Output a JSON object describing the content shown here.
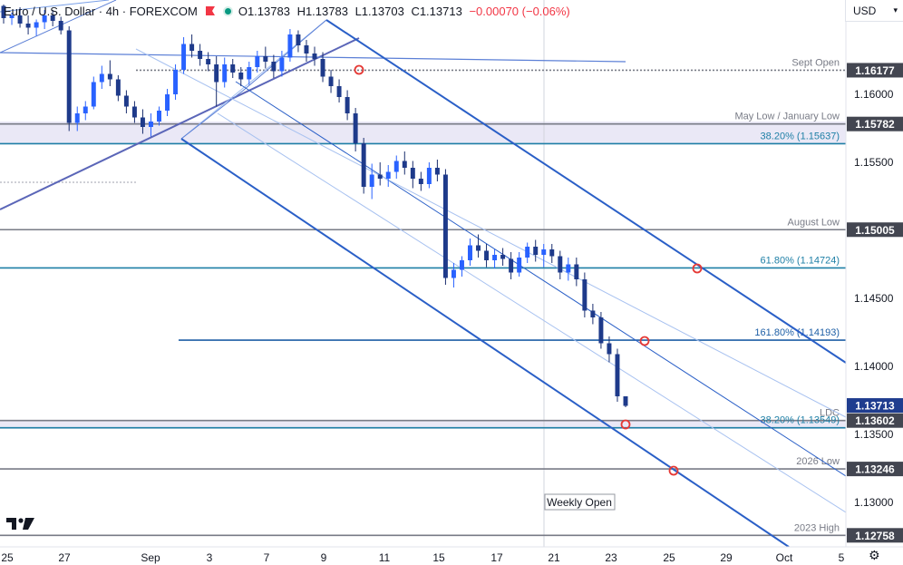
{
  "header": {
    "symbol": "Euro / U.S. Dollar · 4h · FOREXCOM",
    "open": "O1.13783",
    "high": "H1.13783",
    "low": "L1.13703",
    "close": "C1.13713",
    "change": "−0.00070 (−0.06%)"
  },
  "currency": "USD",
  "chart_data": {
    "type": "candlestick",
    "symbol": "EURUSD",
    "timeframe": "4h",
    "ylim": [
      1.1265,
      1.1665
    ],
    "y_ticks": [
      1.16,
      1.155,
      1.145,
      1.14,
      1.135,
      1.13
    ],
    "y_tick_labels": [
      "1.16000",
      "1.15500",
      "1.14500",
      "1.14000",
      "1.13500",
      "1.13000"
    ],
    "x_tick_labels": [
      "25",
      "27",
      "Sep",
      "3",
      "5",
      "7",
      "9",
      "11",
      "15",
      "17",
      "21",
      "23",
      "25",
      "29",
      "Oct",
      "5"
    ],
    "last_price": 1.13713,
    "last_price_label": "1.13713",
    "levels": [
      {
        "label": "Sept Open",
        "price": 1.16177,
        "price_label": "1.16177"
      },
      {
        "label": "May Low / January Low",
        "price": 1.15782,
        "price_label": "1.15782"
      },
      {
        "label": "38.20% (1.15637)",
        "price": 1.15637,
        "price_label": ""
      },
      {
        "label": "August Low",
        "price": 1.15005,
        "price_label": "1.15005"
      },
      {
        "label": "61.80% (1.14724)",
        "price": 1.14724,
        "price_label": ""
      },
      {
        "label": "161.80% (1.14193)",
        "price": 1.14193,
        "price_label": ""
      },
      {
        "label": "LDC",
        "price": 1.13602,
        "price_label": "1.13602"
      },
      {
        "label": "38.20% (1.13549)",
        "price": 1.13549,
        "price_label": ""
      },
      {
        "label": "2026 Low",
        "price": 1.13246,
        "price_label": "1.13246"
      },
      {
        "label": "2023 High",
        "price": 1.12758,
        "price_label": "1.12758"
      }
    ],
    "annotations": [
      "Weekly Open"
    ],
    "candles_ohlc": [
      [
        1.1665,
        1.1666,
        1.1652,
        1.1656
      ],
      [
        1.1656,
        1.166,
        1.1651,
        1.1658
      ],
      [
        1.1658,
        1.1664,
        1.1649,
        1.1652
      ],
      [
        1.1652,
        1.1658,
        1.1644,
        1.1649
      ],
      [
        1.1649,
        1.1655,
        1.1643,
        1.1653
      ],
      [
        1.1653,
        1.1662,
        1.1648,
        1.1658
      ],
      [
        1.1658,
        1.1662,
        1.165,
        1.1654
      ],
      [
        1.1654,
        1.1657,
        1.1644,
        1.1647
      ],
      [
        1.1647,
        1.165,
        1.1573,
        1.1579
      ],
      [
        1.1579,
        1.1591,
        1.1573,
        1.1586
      ],
      [
        1.1586,
        1.1595,
        1.1581,
        1.1591
      ],
      [
        1.1591,
        1.1613,
        1.1589,
        1.1609
      ],
      [
        1.1609,
        1.1621,
        1.1604,
        1.1615
      ],
      [
        1.1615,
        1.1625,
        1.1606,
        1.1611
      ],
      [
        1.1611,
        1.1614,
        1.1595,
        1.1599
      ],
      [
        1.1599,
        1.1603,
        1.1586,
        1.1591
      ],
      [
        1.1591,
        1.1595,
        1.1579,
        1.1583
      ],
      [
        1.1583,
        1.1589,
        1.1571,
        1.1576
      ],
      [
        1.1576,
        1.1586,
        1.1569,
        1.158
      ],
      [
        1.158,
        1.1591,
        1.1577,
        1.1588
      ],
      [
        1.1588,
        1.1604,
        1.1584,
        1.16
      ],
      [
        1.16,
        1.1622,
        1.1596,
        1.1618
      ],
      [
        1.1618,
        1.1642,
        1.1615,
        1.1637
      ],
      [
        1.1637,
        1.1644,
        1.1627,
        1.1632
      ],
      [
        1.1632,
        1.1637,
        1.1621,
        1.1626
      ],
      [
        1.1626,
        1.1631,
        1.1617,
        1.1622
      ],
      [
        1.1622,
        1.1628,
        1.1591,
        1.1609
      ],
      [
        1.1609,
        1.1627,
        1.1605,
        1.1622
      ],
      [
        1.1622,
        1.1626,
        1.1612,
        1.1616
      ],
      [
        1.1616,
        1.162,
        1.1606,
        1.1611
      ],
      [
        1.1611,
        1.1624,
        1.1607,
        1.162
      ],
      [
        1.162,
        1.1632,
        1.1616,
        1.1628
      ],
      [
        1.1628,
        1.1635,
        1.1619,
        1.1624
      ],
      [
        1.1624,
        1.1629,
        1.1612,
        1.1617
      ],
      [
        1.1617,
        1.1632,
        1.1613,
        1.1627
      ],
      [
        1.1627,
        1.1648,
        1.1624,
        1.1644
      ],
      [
        1.1644,
        1.1647,
        1.1631,
        1.1636
      ],
      [
        1.1636,
        1.164,
        1.1624,
        1.163
      ],
      [
        1.163,
        1.1635,
        1.1621,
        1.1626
      ],
      [
        1.1626,
        1.1631,
        1.1609,
        1.1613
      ],
      [
        1.1613,
        1.1618,
        1.1601,
        1.1606
      ],
      [
        1.1606,
        1.1611,
        1.1594,
        1.1598
      ],
      [
        1.1598,
        1.1603,
        1.1581,
        1.1586
      ],
      [
        1.1586,
        1.159,
        1.1558,
        1.1564
      ],
      [
        1.1564,
        1.1568,
        1.1527,
        1.1532
      ],
      [
        1.1532,
        1.1549,
        1.1523,
        1.1541
      ],
      [
        1.1541,
        1.155,
        1.1533,
        1.1538
      ],
      [
        1.1538,
        1.1548,
        1.1532,
        1.1543
      ],
      [
        1.1543,
        1.1555,
        1.1538,
        1.1551
      ],
      [
        1.1551,
        1.1558,
        1.1541,
        1.1546
      ],
      [
        1.1546,
        1.1551,
        1.1531,
        1.1538
      ],
      [
        1.1538,
        1.1543,
        1.1529,
        1.1534
      ],
      [
        1.1534,
        1.155,
        1.1531,
        1.1546
      ],
      [
        1.1546,
        1.1552,
        1.1536,
        1.1541
      ],
      [
        1.1541,
        1.1545,
        1.146,
        1.1465
      ],
      [
        1.1465,
        1.1476,
        1.1458,
        1.1471
      ],
      [
        1.1471,
        1.1481,
        1.1466,
        1.1478
      ],
      [
        1.1478,
        1.1494,
        1.1474,
        1.1489
      ],
      [
        1.1489,
        1.1497,
        1.148,
        1.1485
      ],
      [
        1.1485,
        1.149,
        1.1473,
        1.1478
      ],
      [
        1.1478,
        1.1486,
        1.1472,
        1.1482
      ],
      [
        1.1482,
        1.1487,
        1.1474,
        1.1479
      ],
      [
        1.1479,
        1.1484,
        1.1464,
        1.1469
      ],
      [
        1.1469,
        1.1484,
        1.1466,
        1.148
      ],
      [
        1.148,
        1.1491,
        1.1476,
        1.1488
      ],
      [
        1.1488,
        1.1493,
        1.1477,
        1.1482
      ],
      [
        1.1482,
        1.149,
        1.1473,
        1.1486
      ],
      [
        1.1486,
        1.149,
        1.1476,
        1.1481
      ],
      [
        1.1481,
        1.1485,
        1.1464,
        1.1469
      ],
      [
        1.1469,
        1.148,
        1.1463,
        1.1475
      ],
      [
        1.1475,
        1.148,
        1.1459,
        1.1464
      ],
      [
        1.1464,
        1.1469,
        1.1436,
        1.1441
      ],
      [
        1.1441,
        1.1446,
        1.1431,
        1.1436
      ],
      [
        1.1436,
        1.144,
        1.1413,
        1.1417
      ],
      [
        1.1417,
        1.1422,
        1.1403,
        1.1409
      ],
      [
        1.1409,
        1.1413,
        1.1374,
        1.1378
      ],
      [
        1.1378,
        1.1378,
        1.137,
        1.1371
      ]
    ]
  }
}
